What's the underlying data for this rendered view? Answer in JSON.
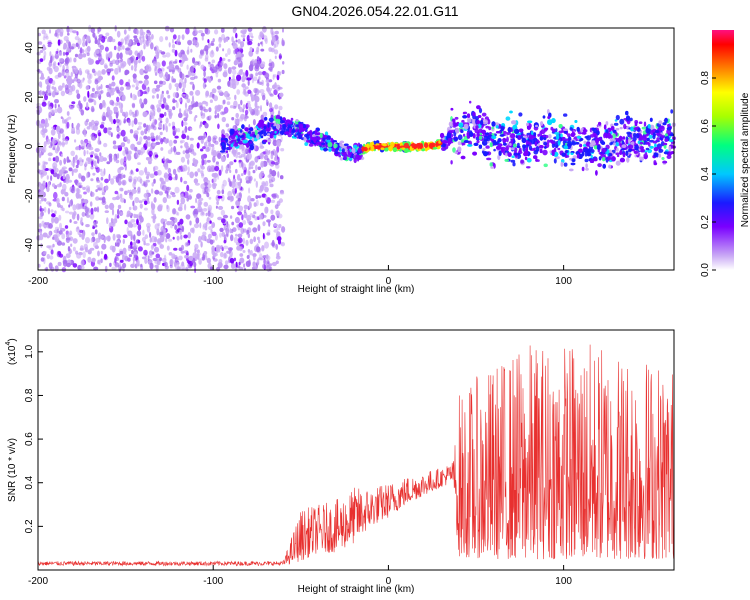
{
  "title": "GN04.2026.054.22.01.G11",
  "colors": {
    "snr_line": "#e8302f",
    "spec_purple": "#7a00ff",
    "spec_light": "#c9a8f5"
  },
  "chart_data": [
    {
      "type": "heatmap",
      "name": "spectrogram",
      "xlabel": "Height of straight line (km)",
      "ylabel": "Frequency (Hz)",
      "xlim": [
        -200,
        163
      ],
      "ylim": [
        -50,
        48
      ],
      "xticks": [
        -200,
        -100,
        0,
        100
      ],
      "yticks": [
        -40,
        -20,
        0,
        20,
        40
      ],
      "ridge": {
        "x": [
          -95,
          -80,
          -65,
          -55,
          -45,
          -35,
          -28,
          -20,
          -10,
          0,
          10,
          20,
          30,
          40,
          50,
          60,
          80,
          100,
          120,
          140,
          163
        ],
        "y": [
          2,
          4,
          8,
          8,
          4,
          2,
          -2,
          -3,
          0,
          0,
          0,
          0,
          1,
          6,
          8,
          3,
          2,
          2,
          0,
          3,
          4
        ]
      },
      "peak_x_range": [
        -15,
        30
      ],
      "colorbar": {
        "label": "Normalized spectral amplitude",
        "range": [
          0.0,
          1.0
        ],
        "ticks": [
          "0.0",
          "0.2",
          "0.4",
          "0.6",
          "0.8"
        ]
      }
    },
    {
      "type": "line",
      "name": "snr",
      "xlabel": "Height of straight line (km)",
      "ylabel": "SNR (10 * v/v)",
      "scale_label": "(x10",
      "scale_exp": "4",
      "scale_close": ")",
      "xlim": [
        -200,
        163
      ],
      "ylim": [
        0,
        1.1
      ],
      "xticks": [
        -200,
        -100,
        0,
        100
      ],
      "yticks": [
        0.2,
        0.4,
        0.6,
        0.8,
        1.0
      ],
      "ytick_labels": [
        "0.2",
        "0.4",
        "0.6",
        "0.8",
        "1.0"
      ],
      "envelope": {
        "x": [
          -200,
          -60,
          -50,
          -40,
          -30,
          -20,
          -10,
          0,
          10,
          20,
          30,
          37,
          40,
          60,
          80,
          100,
          120,
          140,
          163
        ],
        "base": [
          0.02,
          0.02,
          0.04,
          0.08,
          0.08,
          0.12,
          0.2,
          0.24,
          0.3,
          0.34,
          0.38,
          0.4,
          0.06,
          0.05,
          0.05,
          0.05,
          0.05,
          0.05,
          0.05
        ],
        "peak": [
          0.04,
          0.04,
          0.28,
          0.3,
          0.32,
          0.38,
          0.38,
          0.4,
          0.43,
          0.45,
          0.47,
          0.5,
          0.82,
          0.95,
          1.05,
          1.06,
          1.05,
          1.02,
          0.95
        ]
      }
    }
  ]
}
